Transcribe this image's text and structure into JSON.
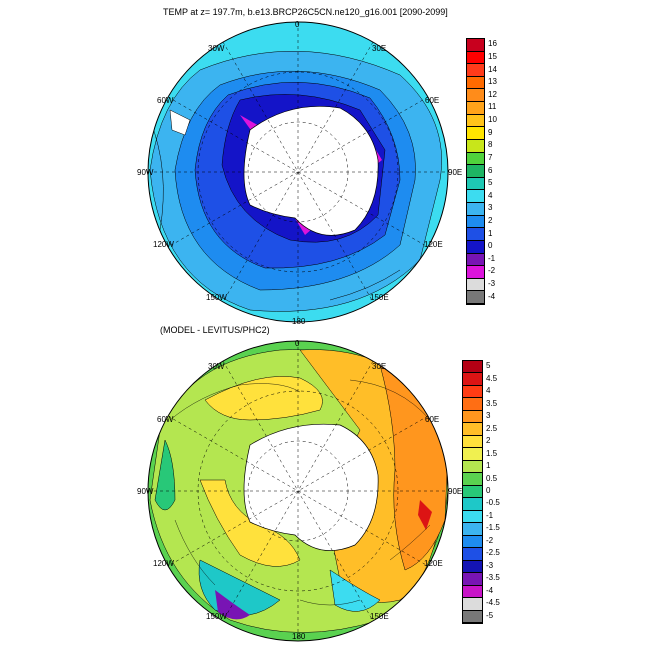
{
  "top": {
    "title": "TEMP at z= 197.7m, b.e13.BRCP26C5CN.ne120_g16.001 [2090-2099]",
    "lon_labels": [
      "0",
      "30E",
      "60E",
      "90E",
      "120E",
      "150E",
      "180",
      "150W",
      "120W",
      "90W",
      "60W",
      "30W"
    ],
    "colorbar_labels": [
      "16",
      "15",
      "14",
      "13",
      "12",
      "11",
      "10",
      "9",
      "8",
      "7",
      "6",
      "5",
      "4",
      "3",
      "2",
      "1",
      "0",
      "-1",
      "-2",
      "-3",
      "-4"
    ],
    "colorbar_colors": [
      "#c8001e",
      "#ff0000",
      "#ff3b1a",
      "#ff6a00",
      "#ff8c1a",
      "#ffa31a",
      "#ffc31a",
      "#ffe400",
      "#c8e61a",
      "#50d23c",
      "#1eb464",
      "#1ec8b4",
      "#3cdcf0",
      "#3cb4f0",
      "#1e8cf0",
      "#1e50e6",
      "#1414c8",
      "#7814b4",
      "#dc14dc",
      "#dcdcdc",
      "#787878"
    ]
  },
  "bottom": {
    "title": "(MODEL - LEVITUS/PHC2)",
    "lon_labels": [
      "0",
      "30E",
      "60E",
      "90E",
      "120E",
      "150E",
      "180",
      "150W",
      "120W",
      "90W",
      "60W",
      "30W"
    ],
    "colorbar_labels": [
      "5",
      "4.5",
      "4",
      "3.5",
      "3",
      "2.5",
      "2",
      "1.5",
      "1",
      "0.5",
      "0",
      "-0.5",
      "-1",
      "-1.5",
      "-2",
      "-2.5",
      "-3",
      "-3.5",
      "-4",
      "-4.5",
      "-5"
    ],
    "colorbar_colors": [
      "#b40014",
      "#dc1414",
      "#ff3c14",
      "#ff6e14",
      "#ff961e",
      "#ffbe28",
      "#ffe13c",
      "#f0f050",
      "#b4e650",
      "#5ad250",
      "#28c878",
      "#1ec8c8",
      "#3cdcf0",
      "#3cb4f0",
      "#1e8cf0",
      "#1e50e6",
      "#1414b4",
      "#7814b4",
      "#c814c8",
      "#dcdcdc",
      "#787878"
    ]
  }
}
